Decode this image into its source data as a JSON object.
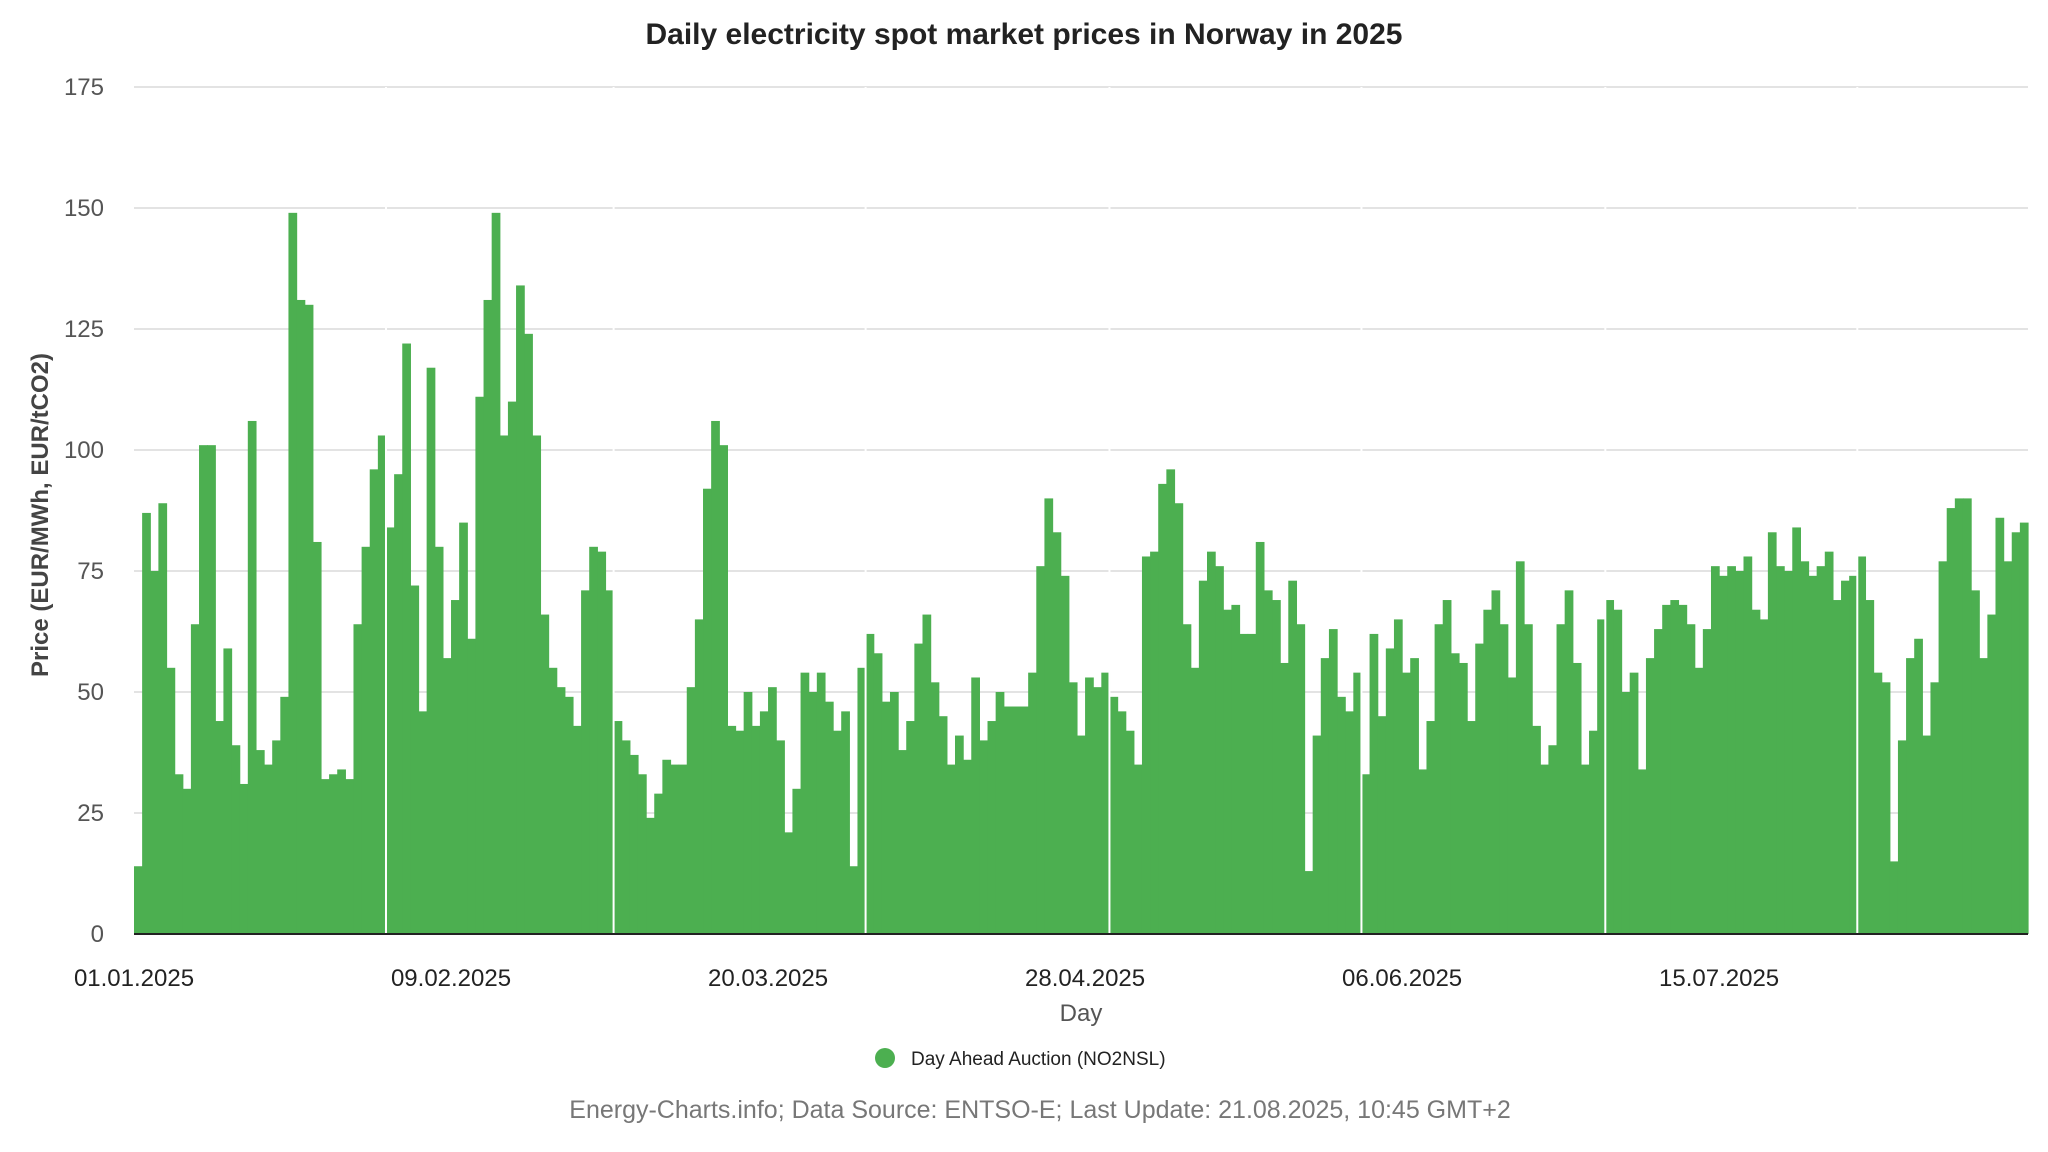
{
  "chart_data": {
    "type": "bar",
    "title": "Daily electricity spot market prices in Norway in 2025",
    "xlabel": "Day",
    "ylabel": "Price (EUR/MWh, EUR/tCO2)",
    "ylim": [
      0,
      175
    ],
    "yticks": [
      0,
      25,
      50,
      75,
      100,
      125,
      150,
      175
    ],
    "xtick_labels": [
      "01.01.2025",
      "09.02.2025",
      "20.03.2025",
      "28.04.2025",
      "06.06.2025",
      "15.07.2025"
    ],
    "grid": true,
    "color": "#4caf50",
    "series": [
      {
        "name": "Day Ahead Auction (NO2NSL)",
        "start_date": "01.01.2025",
        "values": [
          14,
          87,
          75,
          89,
          55,
          33,
          30,
          64,
          101,
          101,
          44,
          59,
          39,
          31,
          106,
          38,
          35,
          40,
          49,
          149,
          131,
          130,
          81,
          32,
          33,
          34,
          32,
          64,
          80,
          96,
          103,
          84,
          95,
          122,
          72,
          46,
          117,
          80,
          57,
          69,
          85,
          61,
          111,
          131,
          149,
          103,
          110,
          134,
          124,
          103,
          66,
          55,
          51,
          49,
          43,
          71,
          80,
          79,
          71,
          44,
          40,
          37,
          33,
          24,
          29,
          36,
          35,
          35,
          51,
          65,
          92,
          106,
          101,
          43,
          42,
          50,
          43,
          46,
          51,
          40,
          21,
          30,
          54,
          50,
          54,
          48,
          42,
          46,
          14,
          55,
          62,
          58,
          48,
          50,
          38,
          44,
          60,
          66,
          52,
          45,
          35,
          41,
          36,
          53,
          40,
          44,
          50,
          47,
          47,
          47,
          54,
          76,
          90,
          83,
          74,
          52,
          41,
          53,
          51,
          54,
          49,
          46,
          42,
          35,
          78,
          79,
          93,
          96,
          89,
          64,
          55,
          73,
          79,
          76,
          67,
          68,
          62,
          62,
          81,
          71,
          69,
          56,
          73,
          64,
          13,
          41,
          57,
          63,
          49,
          46,
          54,
          33,
          62,
          45,
          59,
          65,
          54,
          57,
          34,
          44,
          64,
          69,
          58,
          56,
          44,
          60,
          67,
          71,
          64,
          53,
          77,
          64,
          43,
          35,
          39,
          64,
          71,
          56,
          35,
          42,
          65,
          69,
          67,
          50,
          54,
          34,
          57,
          63,
          68,
          69,
          68,
          64,
          55,
          63,
          76,
          74,
          76,
          75,
          78,
          67,
          65,
          83,
          76,
          75,
          84,
          77,
          74,
          76,
          79,
          69,
          73,
          74,
          78,
          69,
          54,
          52,
          15,
          40,
          57,
          61,
          41,
          52,
          77,
          88,
          90,
          90,
          71,
          57,
          66,
          86,
          77,
          83,
          85
        ]
      }
    ],
    "legend_position": "bottom-center",
    "footer": "Energy-Charts.info; Data Source: ENTSO-E; Last Update: 21.08.2025, 10:45 GMT+2"
  }
}
